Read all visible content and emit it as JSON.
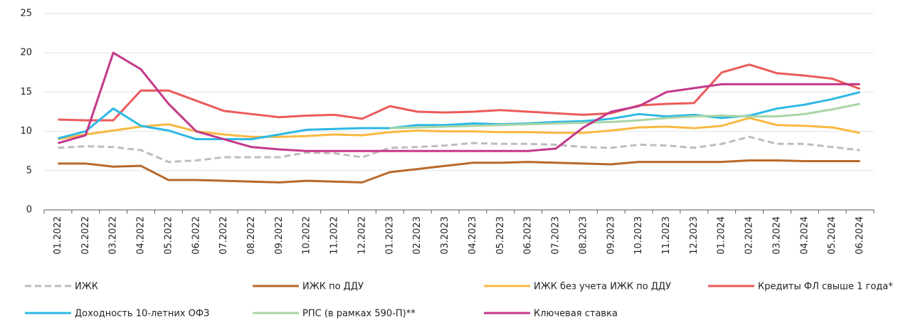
{
  "chart_data": {
    "type": "line",
    "categories": [
      "01.2022",
      "02.2022",
      "03.2022",
      "04.2022",
      "05.2022",
      "06.2022",
      "07.2022",
      "08.2022",
      "09.2022",
      "10.2022",
      "11.2022",
      "12.2022",
      "01.2023",
      "02.2023",
      "03.2023",
      "04.2023",
      "05.2023",
      "06.2023",
      "07.2023",
      "08.2023",
      "09.2023",
      "10.2023",
      "11.2023",
      "12.2023",
      "01.2024",
      "02.2024",
      "03.2024",
      "04.2024",
      "05.2024",
      "06.2024"
    ],
    "ylim": [
      0,
      25
    ],
    "yticks": [
      0,
      5,
      10,
      15,
      20,
      25
    ],
    "grid": true,
    "series": [
      {
        "name": "ИЖК",
        "color": "#bdbdbd",
        "dashed": true,
        "values": [
          7.9,
          8.1,
          8.0,
          7.6,
          6.1,
          6.3,
          6.7,
          6.7,
          6.7,
          7.3,
          7.2,
          6.7,
          7.9,
          8.0,
          8.2,
          8.5,
          8.4,
          8.4,
          8.3,
          8.0,
          7.9,
          8.3,
          8.2,
          7.9,
          8.4,
          9.3,
          8.4,
          8.4,
          8.0,
          7.6
        ]
      },
      {
        "name": "ИЖК по ДДУ",
        "color": "#b8692a",
        "values": [
          5.9,
          5.9,
          5.5,
          5.6,
          3.8,
          3.8,
          3.7,
          3.6,
          3.5,
          3.7,
          3.6,
          3.5,
          4.8,
          5.2,
          5.6,
          6.0,
          6.0,
          6.1,
          6.0,
          5.9,
          5.8,
          6.1,
          6.1,
          6.1,
          6.1,
          6.3,
          6.3,
          6.2,
          6.2,
          6.2
        ]
      },
      {
        "name": "ИЖК без учета ИЖК по ДДУ",
        "color": "#f9b840",
        "values": [
          9.0,
          9.6,
          10.1,
          10.6,
          10.9,
          10.0,
          9.6,
          9.3,
          9.3,
          9.4,
          9.6,
          9.5,
          9.9,
          10.1,
          10.0,
          10.0,
          9.9,
          9.9,
          9.8,
          9.8,
          10.1,
          10.5,
          10.6,
          10.4,
          10.7,
          11.7,
          10.8,
          10.7,
          10.5,
          9.8
        ]
      },
      {
        "name": "Кредиты ФЛ свыше 1 года*",
        "color": "#ec5a5a",
        "values": [
          11.5,
          11.4,
          11.4,
          15.2,
          15.2,
          13.9,
          12.6,
          12.2,
          11.8,
          12.0,
          12.1,
          11.6,
          13.2,
          12.5,
          12.4,
          12.5,
          12.7,
          12.5,
          12.3,
          12.1,
          12.3,
          13.3,
          13.5,
          13.6,
          17.5,
          18.5,
          17.4,
          17.1,
          16.7,
          15.4
        ]
      },
      {
        "name": "Доходность 10-летних ОФЗ",
        "color": "#2cb8e6",
        "values": [
          9.1,
          10.0,
          12.9,
          10.7,
          10.1,
          9.0,
          9.0,
          9.0,
          9.6,
          10.2,
          10.3,
          10.4,
          10.4,
          10.8,
          10.8,
          11.0,
          10.9,
          11.0,
          11.2,
          11.3,
          11.6,
          12.2,
          11.9,
          12.1,
          11.7,
          12.0,
          12.9,
          13.4,
          14.1,
          15.0
        ]
      },
      {
        "name": "РПС (в рамках 590-П)**",
        "color": "#a9d5a6",
        "values": [
          null,
          null,
          null,
          null,
          null,
          null,
          null,
          null,
          null,
          null,
          null,
          null,
          10.4,
          10.5,
          10.6,
          10.7,
          10.8,
          10.9,
          11.0,
          11.1,
          11.2,
          11.4,
          11.7,
          11.9,
          12.0,
          11.9,
          11.9,
          12.2,
          12.8,
          13.5
        ]
      },
      {
        "name": "Ключевая ставка",
        "color": "#c4388a",
        "values": [
          8.5,
          9.5,
          20,
          17.9,
          13.5,
          10.0,
          9.0,
          8.0,
          7.7,
          7.5,
          7.5,
          7.5,
          7.5,
          7.5,
          7.5,
          7.5,
          7.5,
          7.5,
          7.8,
          10.5,
          12.5,
          13.2,
          15.0,
          15.5,
          16,
          16,
          16,
          16,
          16,
          16
        ]
      }
    ]
  }
}
